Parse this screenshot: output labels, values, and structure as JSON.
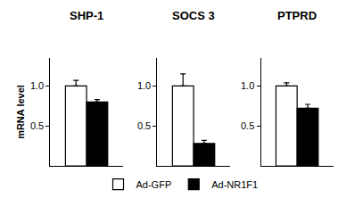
{
  "chart_data": [
    {
      "type": "bar",
      "title": "SHP-1",
      "ylabel": "mRNA level",
      "legend": "bottom",
      "categories": [
        null
      ],
      "series": [
        {
          "name": "Ad-GFP",
          "color": "#ffffff",
          "values": [
            1.0
          ],
          "errors": [
            0.07
          ]
        },
        {
          "name": "Ad-NR1F1",
          "color": "#000000",
          "values": [
            0.8
          ],
          "errors": [
            0.03
          ]
        }
      ],
      "ylim": [
        0,
        1.35
      ],
      "yticks": [
        {
          "value": 0.5,
          "label": "0.5"
        },
        {
          "value": 1.0,
          "label": "1.0"
        }
      ]
    },
    {
      "type": "bar",
      "title": "SOCS 3",
      "categories": [
        null
      ],
      "series": [
        {
          "name": "Ad-GFP",
          "color": "#ffffff",
          "values": [
            1.0
          ],
          "errors": [
            0.15
          ]
        },
        {
          "name": "Ad-NR1F1",
          "color": "#000000",
          "values": [
            0.28
          ],
          "errors": [
            0.04
          ]
        }
      ],
      "ylim": [
        0,
        1.35
      ],
      "yticks": [
        {
          "value": 0.5,
          "label": "0.5"
        },
        {
          "value": 1.0,
          "label": "1.0"
        }
      ]
    },
    {
      "type": "bar",
      "title": "PTPRD",
      "categories": [
        null
      ],
      "series": [
        {
          "name": "Ad-GFP",
          "color": "#ffffff",
          "values": [
            1.0
          ],
          "errors": [
            0.04
          ]
        },
        {
          "name": "Ad-NR1F1",
          "color": "#000000",
          "values": [
            0.72
          ],
          "errors": [
            0.05
          ]
        }
      ],
      "ylim": [
        0,
        1.35
      ],
      "yticks": [
        {
          "value": 0.5,
          "label": "0.5"
        },
        {
          "value": 1.0,
          "label": "1.0"
        }
      ]
    }
  ]
}
